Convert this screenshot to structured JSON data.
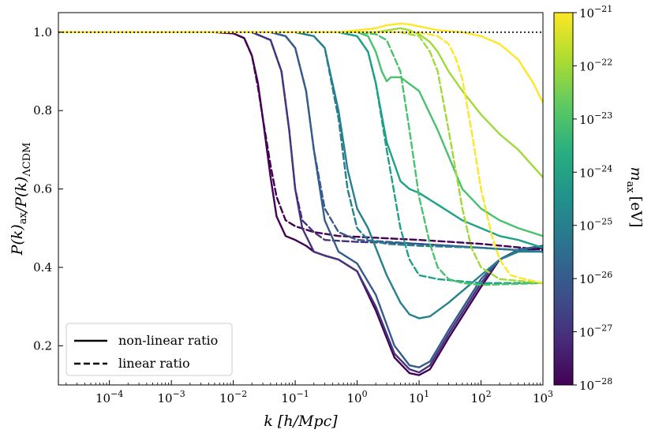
{
  "chart_data": {
    "type": "line",
    "title": "",
    "xlabel": "k [h/Mpc]",
    "ylabel": "P(k)_ax / P(k)_ΛCDM",
    "xscale": "log",
    "xlim": [
      1.5e-05,
      1000
    ],
    "ylim": [
      0.1,
      1.05
    ],
    "yticks": [
      0.2,
      0.4,
      0.6,
      0.8,
      1.0
    ],
    "ytick_labels": [
      "0.2",
      "0.4",
      "0.6",
      "0.8",
      "1.0"
    ],
    "xtick_labels": [
      {
        "base": "10",
        "exp": "−4"
      },
      {
        "base": "10",
        "exp": "−3"
      },
      {
        "base": "10",
        "exp": "−2"
      },
      {
        "base": "10",
        "exp": "−1"
      },
      {
        "base": "10",
        "exp": "0"
      },
      {
        "base": "10",
        "exp": "1"
      },
      {
        "base": "10",
        "exp": "2"
      },
      {
        "base": "10",
        "exp": "3"
      }
    ],
    "xtick_exponents": [
      -4,
      -3,
      -2,
      -1,
      0,
      1,
      2,
      3
    ],
    "reference_line": {
      "y": 1.0,
      "style": "dotted",
      "color": "#000000"
    },
    "legend": {
      "location": "lower-left",
      "entries": [
        {
          "label": "non-linear ratio",
          "style": "solid"
        },
        {
          "label": "linear ratio",
          "style": "dashed"
        }
      ]
    },
    "colorbar": {
      "label_sym": "m",
      "label_sub": "ax",
      "label_unit": "[eV]",
      "ticks": [
        {
          "base": "10",
          "exp": "−21"
        },
        {
          "base": "10",
          "exp": "−22"
        },
        {
          "base": "10",
          "exp": "−23"
        },
        {
          "base": "10",
          "exp": "−24"
        },
        {
          "base": "10",
          "exp": "−25"
        },
        {
          "base": "10",
          "exp": "−26"
        },
        {
          "base": "10",
          "exp": "−27"
        },
        {
          "base": "10",
          "exp": "−28"
        }
      ],
      "range_log10": [
        -28,
        -21
      ],
      "colormap_stops": [
        "#440154",
        "#472d7b",
        "#3b528b",
        "#2c728e",
        "#21918c",
        "#28ae80",
        "#5ec962",
        "#addc30",
        "#fde725"
      ]
    },
    "series": [
      {
        "name": "m=1e-28 eV linear",
        "style": "dashed",
        "color": "#440154",
        "x": [
          1.5e-05,
          0.005,
          0.01,
          0.015,
          0.02,
          0.025,
          0.03,
          0.04,
          0.05,
          0.07,
          0.1,
          0.2,
          0.5,
          1,
          10,
          100,
          1000
        ],
        "y": [
          1.0,
          1.0,
          0.997,
          0.985,
          0.94,
          0.86,
          0.78,
          0.66,
          0.58,
          0.52,
          0.505,
          0.49,
          0.48,
          0.478,
          0.47,
          0.46,
          0.445
        ]
      },
      {
        "name": "m=1e-28 eV non-linear",
        "style": "solid",
        "color": "#440154",
        "x": [
          1.5e-05,
          0.005,
          0.01,
          0.015,
          0.02,
          0.025,
          0.03,
          0.04,
          0.05,
          0.07,
          0.1,
          0.15,
          0.2,
          0.3,
          0.5,
          1,
          2,
          4,
          7,
          10,
          15,
          30,
          100,
          200,
          400,
          1000
        ],
        "y": [
          1.0,
          1.0,
          0.997,
          0.985,
          0.94,
          0.87,
          0.78,
          0.63,
          0.53,
          0.48,
          0.47,
          0.455,
          0.44,
          0.43,
          0.42,
          0.39,
          0.29,
          0.17,
          0.13,
          0.125,
          0.14,
          0.22,
          0.35,
          0.42,
          0.44,
          0.45
        ]
      },
      {
        "name": "m=1e-27 eV linear",
        "style": "dashed",
        "color": "#46337e",
        "x": [
          1.5e-05,
          0.02,
          0.04,
          0.06,
          0.08,
          0.1,
          0.13,
          0.2,
          0.3,
          1,
          10,
          100,
          1000
        ],
        "y": [
          1.0,
          1.0,
          0.98,
          0.9,
          0.75,
          0.6,
          0.52,
          0.49,
          0.47,
          0.465,
          0.46,
          0.45,
          0.44
        ]
      },
      {
        "name": "m=1e-27 eV non-linear",
        "style": "solid",
        "color": "#46337e",
        "x": [
          1.5e-05,
          0.02,
          0.04,
          0.06,
          0.08,
          0.1,
          0.13,
          0.2,
          0.3,
          0.5,
          1,
          2,
          4,
          7,
          10,
          15,
          30,
          100,
          200,
          400,
          1000
        ],
        "y": [
          1.0,
          1.0,
          0.98,
          0.9,
          0.75,
          0.6,
          0.5,
          0.44,
          0.43,
          0.42,
          0.39,
          0.3,
          0.18,
          0.14,
          0.132,
          0.15,
          0.23,
          0.36,
          0.42,
          0.445,
          0.455
        ]
      },
      {
        "name": "m=1e-26 eV linear",
        "style": "dashed",
        "color": "#365c8d",
        "x": [
          1.5e-05,
          0.04,
          0.07,
          0.1,
          0.15,
          0.2,
          0.3,
          0.5,
          1,
          10,
          100,
          1000
        ],
        "y": [
          1.0,
          1.0,
          0.99,
          0.96,
          0.85,
          0.7,
          0.55,
          0.49,
          0.47,
          0.46,
          0.45,
          0.44
        ]
      },
      {
        "name": "m=1e-26 eV non-linear",
        "style": "solid",
        "color": "#365c8d",
        "x": [
          1.5e-05,
          0.04,
          0.07,
          0.1,
          0.15,
          0.2,
          0.3,
          0.5,
          1,
          2,
          4,
          7,
          10,
          15,
          30,
          100,
          200,
          400,
          1000
        ],
        "y": [
          1.0,
          1.0,
          0.99,
          0.96,
          0.85,
          0.7,
          0.52,
          0.44,
          0.41,
          0.33,
          0.2,
          0.15,
          0.145,
          0.16,
          0.24,
          0.37,
          0.42,
          0.445,
          0.455
        ]
      },
      {
        "name": "m=1e-25 eV linear",
        "style": "dashed",
        "color": "#277f8e",
        "x": [
          1.5e-05,
          0.1,
          0.2,
          0.3,
          0.5,
          0.7,
          1,
          1.5,
          3,
          10,
          100,
          1000
        ],
        "y": [
          1.0,
          1.0,
          0.99,
          0.96,
          0.78,
          0.6,
          0.5,
          0.47,
          0.46,
          0.455,
          0.45,
          0.44
        ]
      },
      {
        "name": "m=1e-25 eV non-linear",
        "style": "solid",
        "color": "#277f8e",
        "x": [
          1.5e-05,
          0.1,
          0.2,
          0.3,
          0.5,
          0.7,
          1,
          1.5,
          2,
          3,
          5,
          7,
          10,
          15,
          30,
          100,
          200,
          400,
          1000
        ],
        "y": [
          1.0,
          1.0,
          0.99,
          0.96,
          0.8,
          0.65,
          0.55,
          0.5,
          0.45,
          0.38,
          0.31,
          0.28,
          0.27,
          0.275,
          0.31,
          0.38,
          0.42,
          0.44,
          0.44
        ]
      },
      {
        "name": "m=1e-24 eV linear",
        "style": "dashed",
        "color": "#1fa187",
        "x": [
          1.5e-05,
          0.5,
          1,
          1.5,
          2,
          3,
          5,
          7,
          10,
          20,
          100,
          1000
        ],
        "y": [
          1.0,
          1.0,
          0.99,
          0.95,
          0.87,
          0.7,
          0.5,
          0.42,
          0.38,
          0.37,
          0.36,
          0.36
        ]
      },
      {
        "name": "m=1e-24 eV non-linear",
        "style": "solid",
        "color": "#1fa187",
        "x": [
          1.5e-05,
          0.5,
          1,
          1.5,
          2,
          3,
          5,
          7,
          10,
          20,
          50,
          100,
          200,
          400,
          1000
        ],
        "y": [
          1.0,
          1.0,
          0.99,
          0.95,
          0.87,
          0.72,
          0.62,
          0.6,
          0.59,
          0.56,
          0.52,
          0.5,
          0.48,
          0.47,
          0.45
        ]
      },
      {
        "name": "m=1e-23 eV linear",
        "style": "dashed",
        "color": "#4ac16d",
        "x": [
          1.5e-05,
          1,
          2,
          3,
          5,
          7,
          10,
          15,
          20,
          30,
          50,
          100,
          1000
        ],
        "y": [
          1.0,
          1.0,
          0.995,
          0.98,
          0.9,
          0.75,
          0.58,
          0.46,
          0.4,
          0.37,
          0.36,
          0.355,
          0.36
        ]
      },
      {
        "name": "m=1e-23 eV non-linear",
        "style": "solid",
        "color": "#4ac16d",
        "x": [
          1.5e-05,
          1,
          1.5,
          2,
          2.5,
          3,
          3.5,
          5,
          10,
          20,
          50,
          100,
          200,
          400,
          1000
        ],
        "y": [
          1.0,
          1.0,
          0.99,
          0.95,
          0.9,
          0.875,
          0.885,
          0.885,
          0.85,
          0.75,
          0.6,
          0.55,
          0.52,
          0.5,
          0.48
        ]
      },
      {
        "name": "m=1e-22 eV linear",
        "style": "dashed",
        "color": "#a0da39",
        "x": [
          1.5e-05,
          5,
          10,
          15,
          20,
          30,
          50,
          70,
          100,
          200,
          1000
        ],
        "y": [
          1.0,
          1.0,
          0.99,
          0.95,
          0.9,
          0.75,
          0.55,
          0.45,
          0.4,
          0.37,
          0.36
        ]
      },
      {
        "name": "m=1e-22 eV non-linear",
        "style": "solid",
        "color": "#a0da39",
        "x": [
          1.5e-05,
          2,
          5,
          7,
          10,
          15,
          20,
          30,
          50,
          100,
          200,
          400,
          1000
        ],
        "y": [
          1.0,
          1.0,
          1.01,
          1.005,
          0.995,
          0.975,
          0.95,
          0.9,
          0.85,
          0.79,
          0.74,
          0.7,
          0.63
        ]
      },
      {
        "name": "m=1e-21 eV linear",
        "style": "dashed",
        "color": "#fde725",
        "x": [
          1.5e-05,
          10,
          20,
          30,
          40,
          50,
          70,
          100,
          150,
          200,
          300,
          500,
          1000
        ],
        "y": [
          1.0,
          1.0,
          0.99,
          0.97,
          0.93,
          0.88,
          0.75,
          0.6,
          0.48,
          0.42,
          0.38,
          0.37,
          0.36
        ]
      },
      {
        "name": "m=1e-21 eV non-linear",
        "style": "solid",
        "color": "#fde725",
        "x": [
          1.5e-05,
          0.5,
          1,
          2,
          3,
          5,
          7,
          10,
          20,
          50,
          100,
          200,
          400,
          700,
          1000
        ],
        "y": [
          1.0,
          1.0,
          1.005,
          1.01,
          1.018,
          1.022,
          1.02,
          1.015,
          1.005,
          1.0,
          0.99,
          0.97,
          0.93,
          0.87,
          0.82
        ]
      }
    ]
  }
}
